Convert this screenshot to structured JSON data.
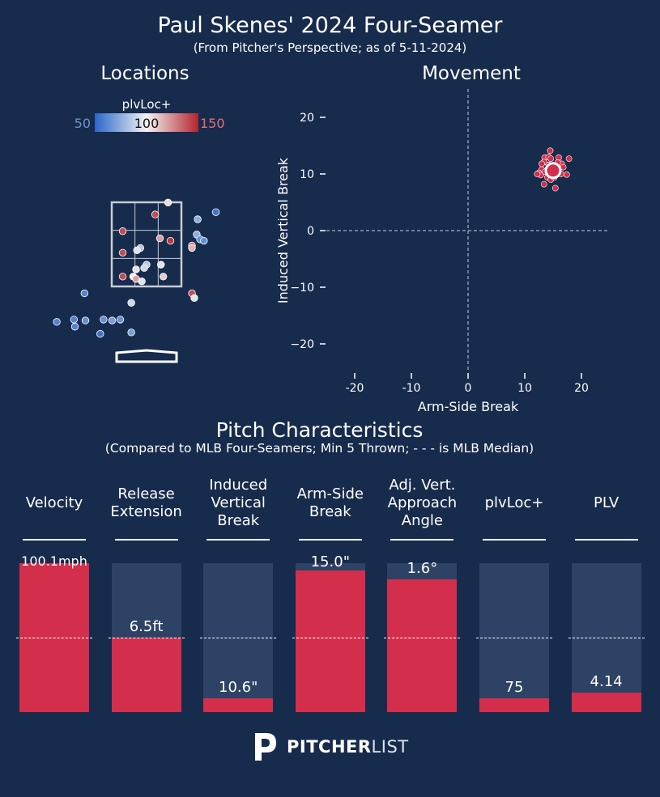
{
  "header": {
    "title": "Paul Skenes' 2024 Four-Seamer",
    "subtitle": "(From Pitcher's Perspective; as of 5-11-2024)"
  },
  "locations": {
    "title": "Locations",
    "colorbar": {
      "label": "plvLoc+",
      "min_label": "50",
      "mid_label": "100",
      "max_label": "150",
      "low_color": "#2a66c9",
      "mid_color": "#f3f3f3",
      "high_color": "#b3242e"
    },
    "colors": {
      "zone": "#c7ccd4",
      "plate": "#ffffff"
    }
  },
  "movement": {
    "title": "Movement",
    "xlabel": "Arm-Side Break",
    "ylabel": "Induced Vertical Break"
  },
  "characteristics": {
    "title": "Pitch Characteristics",
    "subtitle": "(Compared to MLB Four-Seamers; Min 5 Thrown; - - - is MLB Median)",
    "median_fraction": 0.5
  },
  "brand": {
    "logo_bold": "PITCHER",
    "logo_light": "LIST"
  },
  "chart_data": [
    {
      "type": "scatter",
      "name": "Locations",
      "description_legend": "plvLoc+",
      "colorbar_range": [
        50,
        150
      ],
      "points": [
        {
          "x": 0.45,
          "y": 3.35,
          "v": 105
        },
        {
          "x": 0.18,
          "y": 3.1,
          "v": 140
        },
        {
          "x": -0.5,
          "y": 2.75,
          "v": 140
        },
        {
          "x": 0.28,
          "y": 2.6,
          "v": 120
        },
        {
          "x": 0.5,
          "y": 2.55,
          "v": 145
        },
        {
          "x": -0.13,
          "y": 2.4,
          "v": 85
        },
        {
          "x": -0.2,
          "y": 2.35,
          "v": 95
        },
        {
          "x": -0.5,
          "y": 2.3,
          "v": 140
        },
        {
          "x": 0.95,
          "y": 2.45,
          "v": 130
        },
        {
          "x": 0.95,
          "y": 2.4,
          "v": 115
        },
        {
          "x": 1.05,
          "y": 2.68,
          "v": 75
        },
        {
          "x": 1.07,
          "y": 3.0,
          "v": 75
        },
        {
          "x": 1.12,
          "y": 2.58,
          "v": 65
        },
        {
          "x": 1.2,
          "y": 2.55,
          "v": 65
        },
        {
          "x": 1.45,
          "y": 3.15,
          "v": 55
        },
        {
          "x": 0.3,
          "y": 2.05,
          "v": 95
        },
        {
          "x": 0.0,
          "y": 2.05,
          "v": 85
        },
        {
          "x": -0.22,
          "y": 1.95,
          "v": 105
        },
        {
          "x": -0.05,
          "y": 1.98,
          "v": 90
        },
        {
          "x": -0.28,
          "y": 1.8,
          "v": 100
        },
        {
          "x": -0.22,
          "y": 1.75,
          "v": 120
        },
        {
          "x": -0.1,
          "y": 1.7,
          "v": 95
        },
        {
          "x": -0.5,
          "y": 1.8,
          "v": 140
        },
        {
          "x": 0.35,
          "y": 1.8,
          "v": 110
        },
        {
          "x": 0.95,
          "y": 1.45,
          "v": 140
        },
        {
          "x": 1.0,
          "y": 1.35,
          "v": 95
        },
        {
          "x": -0.32,
          "y": 1.25,
          "v": 90
        },
        {
          "x": -1.3,
          "y": 1.45,
          "v": 60
        },
        {
          "x": -1.52,
          "y": 0.9,
          "v": 60
        },
        {
          "x": -1.28,
          "y": 0.88,
          "v": 65
        },
        {
          "x": -0.9,
          "y": 0.9,
          "v": 65
        },
        {
          "x": -0.72,
          "y": 0.88,
          "v": 70
        },
        {
          "x": -0.55,
          "y": 0.9,
          "v": 65
        },
        {
          "x": -1.88,
          "y": 0.85,
          "v": 60
        },
        {
          "x": -1.5,
          "y": 0.75,
          "v": 60
        },
        {
          "x": -0.97,
          "y": 0.6,
          "v": 55
        },
        {
          "x": -0.32,
          "y": 0.63,
          "v": 70
        }
      ]
    },
    {
      "type": "scatter",
      "name": "Movement",
      "title": "Movement",
      "xlabel": "Arm-Side Break",
      "ylabel": "Induced Vertical Break",
      "xlim": [
        -25,
        25
      ],
      "ylim": [
        -25,
        25
      ],
      "xticks": [
        -20,
        -10,
        0,
        10,
        20
      ],
      "yticks": [
        20,
        10,
        0,
        -10,
        -20
      ],
      "grid": false,
      "average": {
        "x": 15.0,
        "y": 10.6
      },
      "points": [
        {
          "x": 14.5,
          "y": 14.1
        },
        {
          "x": 13.5,
          "y": 12.9
        },
        {
          "x": 14.2,
          "y": 13.0
        },
        {
          "x": 14.6,
          "y": 12.7
        },
        {
          "x": 16.0,
          "y": 12.9
        },
        {
          "x": 17.8,
          "y": 12.7
        },
        {
          "x": 13.4,
          "y": 12.1
        },
        {
          "x": 13.0,
          "y": 11.8
        },
        {
          "x": 16.5,
          "y": 11.8
        },
        {
          "x": 16.8,
          "y": 11.2
        },
        {
          "x": 13.0,
          "y": 10.8
        },
        {
          "x": 12.5,
          "y": 10.2
        },
        {
          "x": 12.8,
          "y": 9.8
        },
        {
          "x": 13.6,
          "y": 10.4
        },
        {
          "x": 16.4,
          "y": 10.0
        },
        {
          "x": 17.4,
          "y": 9.9
        },
        {
          "x": 14.0,
          "y": 9.4
        },
        {
          "x": 14.6,
          "y": 9.0
        },
        {
          "x": 15.2,
          "y": 9.4
        },
        {
          "x": 13.4,
          "y": 8.2
        },
        {
          "x": 15.4,
          "y": 7.5
        },
        {
          "x": 12.2,
          "y": 10.0
        },
        {
          "x": 15.8,
          "y": 12.0
        },
        {
          "x": 14.2,
          "y": 11.6
        }
      ]
    },
    {
      "type": "bar",
      "name": "Pitch Characteristics",
      "title": "Pitch Characteristics",
      "categories": [
        "Velocity",
        "Release Extension",
        "Induced Vertical Break",
        "Arm-Side Break",
        "Adj. Vert. Approach Angle",
        "plvLoc+",
        "PLV"
      ],
      "category_lines": [
        [
          "Velocity"
        ],
        [
          "Release",
          "Extension"
        ],
        [
          "Induced",
          "Vertical",
          "Break"
        ],
        [
          "Arm-Side",
          "Break"
        ],
        [
          "Adj. Vert.",
          "Approach",
          "Angle"
        ],
        [
          "plvLoc+"
        ],
        [
          "PLV"
        ]
      ],
      "value_labels": [
        "100.1mph",
        "6.5ft",
        "10.6\"",
        "15.0\"",
        "1.6°",
        "75",
        "4.14"
      ],
      "percentile_values": [
        1.0,
        0.5,
        0.09,
        0.95,
        0.89,
        0.09,
        0.13
      ],
      "mlb_median": 0.5,
      "ylim": [
        0,
        1
      ]
    }
  ]
}
